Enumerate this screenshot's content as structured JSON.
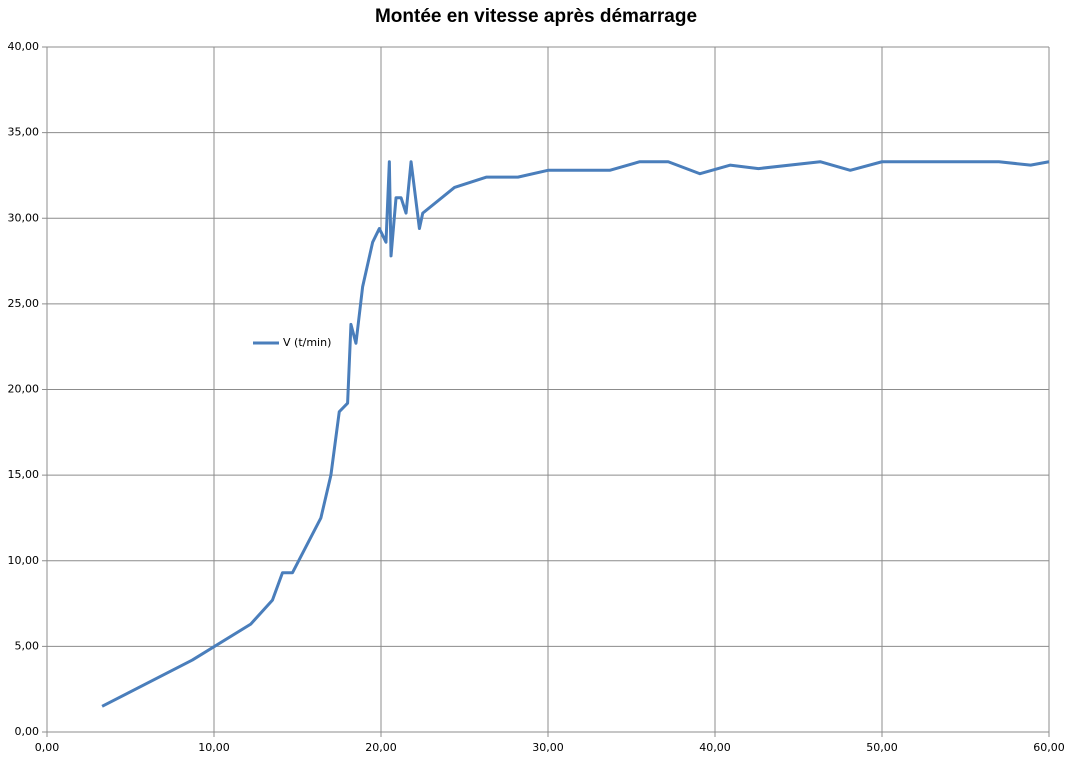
{
  "chart_data": {
    "type": "line",
    "title": "Montée en vitesse après démarrage",
    "x": [
      3.3,
      8.7,
      12.2,
      13.5,
      14.1,
      14.7,
      15.6,
      16.4,
      17.0,
      17.5,
      18.0,
      18.2,
      18.5,
      18.9,
      19.5,
      19.9,
      20.3,
      20.5,
      20.6,
      20.9,
      21.2,
      21.5,
      21.8,
      22.3,
      22.5,
      24.4,
      26.3,
      28.2,
      30.0,
      33.7,
      35.5,
      37.2,
      39.1,
      40.9,
      42.6,
      46.3,
      48.1,
      50.0,
      57.0,
      58.9,
      60.0
    ],
    "series": [
      {
        "name": "V (t/min)",
        "color": "#4a7ebb",
        "values": [
          1.5,
          4.2,
          6.3,
          7.7,
          9.3,
          9.3,
          11.0,
          12.5,
          15.0,
          18.7,
          19.2,
          23.8,
          22.7,
          26.0,
          28.6,
          29.4,
          28.6,
          33.3,
          27.8,
          31.2,
          31.2,
          30.3,
          33.3,
          29.4,
          30.3,
          31.8,
          32.4,
          32.4,
          32.8,
          32.8,
          33.3,
          33.3,
          32.6,
          33.1,
          32.9,
          33.3,
          32.8,
          33.3,
          33.3,
          33.1,
          33.3
        ]
      }
    ],
    "xlim": [
      0,
      60
    ],
    "xticks": [
      {
        "value": 0,
        "label": "0,00"
      },
      {
        "value": 10,
        "label": "10,00"
      },
      {
        "value": 20,
        "label": "20,00"
      },
      {
        "value": 30,
        "label": "30,00"
      },
      {
        "value": 40,
        "label": "40,00"
      },
      {
        "value": 50,
        "label": "50,00"
      },
      {
        "value": 60,
        "label": "60,00"
      }
    ],
    "ylim": [
      0,
      40
    ],
    "yticks": [
      {
        "value": 0,
        "label": "0,00"
      },
      {
        "value": 5,
        "label": "5,00"
      },
      {
        "value": 10,
        "label": "10,00"
      },
      {
        "value": 15,
        "label": "15,00"
      },
      {
        "value": 20,
        "label": "20,00"
      },
      {
        "value": 25,
        "label": "25,00"
      },
      {
        "value": 30,
        "label": "30,00"
      },
      {
        "value": 35,
        "label": "35,00"
      },
      {
        "value": 40,
        "label": "40,00"
      }
    ],
    "grid": true
  }
}
